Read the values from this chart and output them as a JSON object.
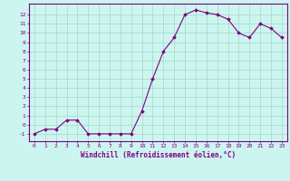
{
  "x": [
    0,
    1,
    2,
    3,
    4,
    5,
    6,
    7,
    8,
    9,
    10,
    11,
    12,
    13,
    14,
    15,
    16,
    17,
    18,
    19,
    20,
    21,
    22,
    23
  ],
  "y": [
    -1,
    -0.5,
    -0.5,
    0.5,
    0.5,
    -1,
    -1,
    -1,
    -1,
    -1,
    1.5,
    5.0,
    8.0,
    9.5,
    12.0,
    12.5,
    12.2,
    12.0,
    11.5,
    10.0,
    9.5,
    11.0,
    10.5,
    9.5
  ],
  "line_color": "#800080",
  "marker_color": "#800080",
  "bg_color": "#ccf5f0",
  "grid_color": "#aaddcc",
  "axis_color": "#800080",
  "xlabel": "Windchill (Refroidissement éolien,°C)",
  "xlim": [
    -0.5,
    23.5
  ],
  "ylim": [
    -1.8,
    13.2
  ],
  "xtick_labels": [
    "0",
    "1",
    "2",
    "3",
    "4",
    "5",
    "6",
    "7",
    "8",
    "9",
    "10",
    "11",
    "12",
    "13",
    "14",
    "15",
    "16",
    "17",
    "18",
    "19",
    "20",
    "21",
    "22",
    "23"
  ],
  "ytick_values": [
    -1,
    0,
    1,
    2,
    3,
    4,
    5,
    6,
    7,
    8,
    9,
    10,
    11,
    12
  ],
  "font_color": "#800080",
  "font_size_ticks": 4.5,
  "font_size_xlabel": 5.5
}
